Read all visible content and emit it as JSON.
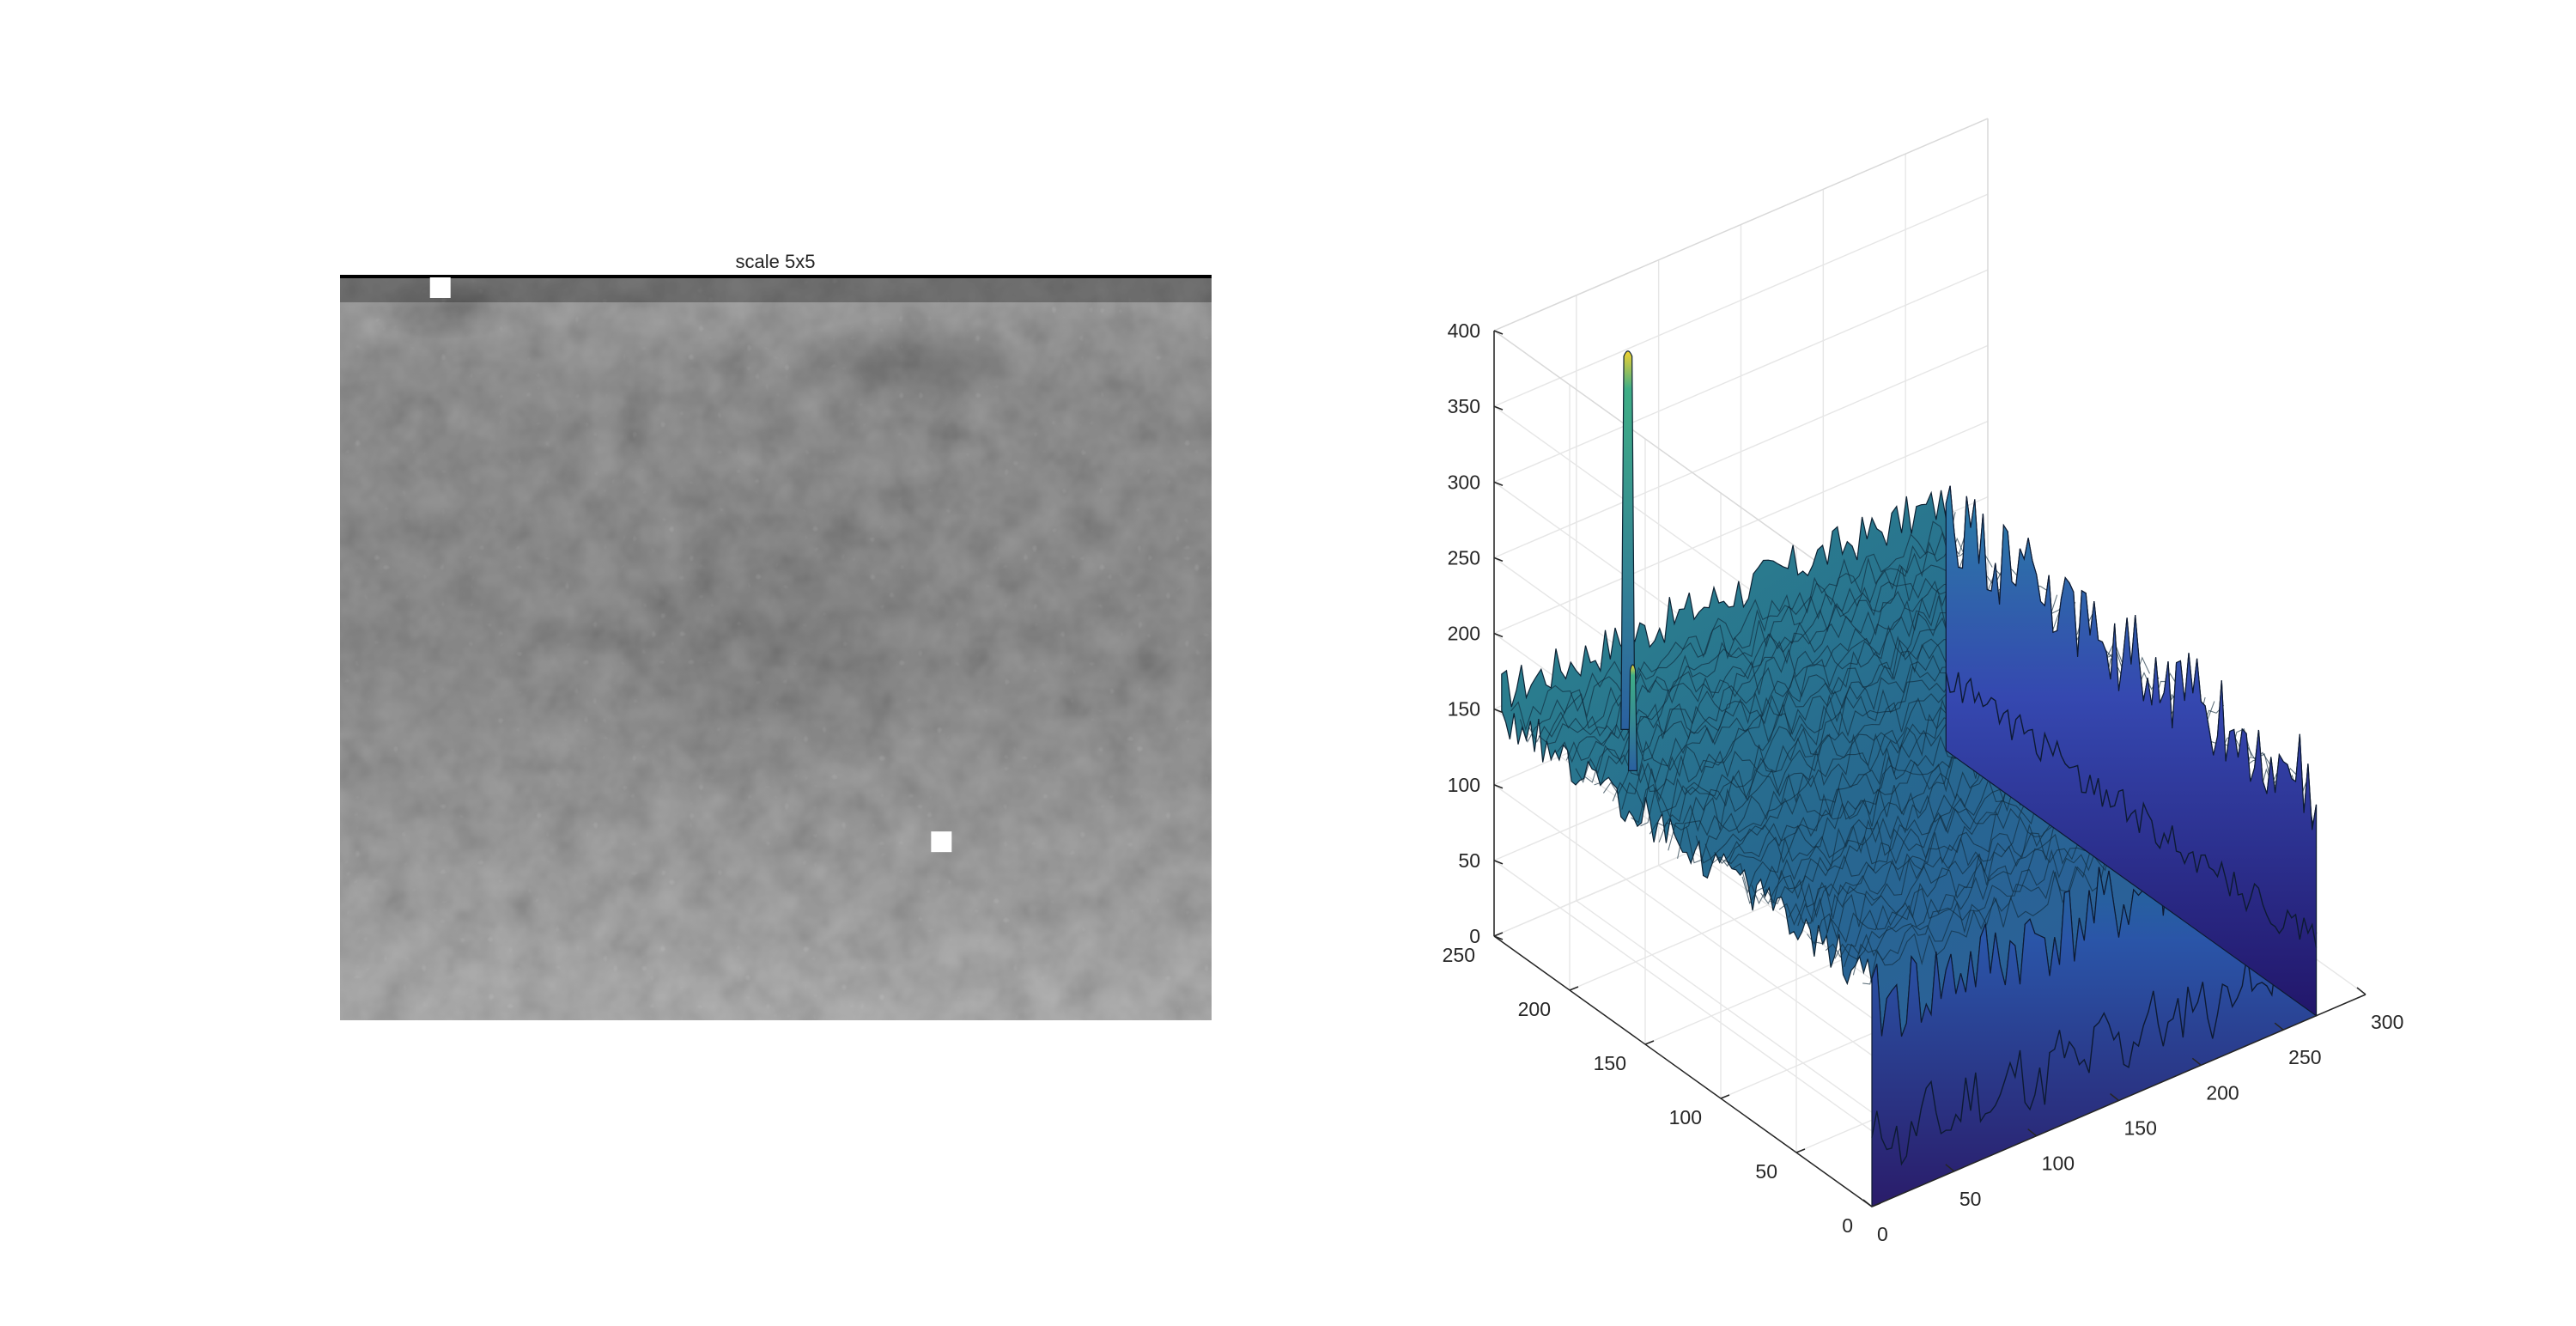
{
  "chart_data": [
    {
      "type": "heatmap",
      "title": "scale 5x5",
      "colormap": "gray",
      "grid": false,
      "bright_spots": [
        {
          "x_frac": 0.69,
          "y_frac": 0.76
        },
        {
          "x_frac": 0.115,
          "y_frac": 0.015
        }
      ]
    },
    {
      "type": "surface",
      "title": "",
      "colormap": "parula",
      "grid": true,
      "xlim": [
        0,
        300
      ],
      "ylim": [
        0,
        250
      ],
      "zlim": [
        0,
        400
      ],
      "x_ticks": [
        0,
        50,
        100,
        150,
        200,
        250,
        300
      ],
      "y_ticks": [
        0,
        50,
        100,
        150,
        200,
        250
      ],
      "z_ticks": [
        0,
        50,
        100,
        150,
        200,
        250,
        300,
        350,
        400
      ],
      "surface_baseline_z": 150,
      "peak": {
        "x": 40,
        "y": 205,
        "z": 400
      },
      "secondary_peak": {
        "x": 20,
        "y": 180,
        "z": 220
      }
    }
  ]
}
